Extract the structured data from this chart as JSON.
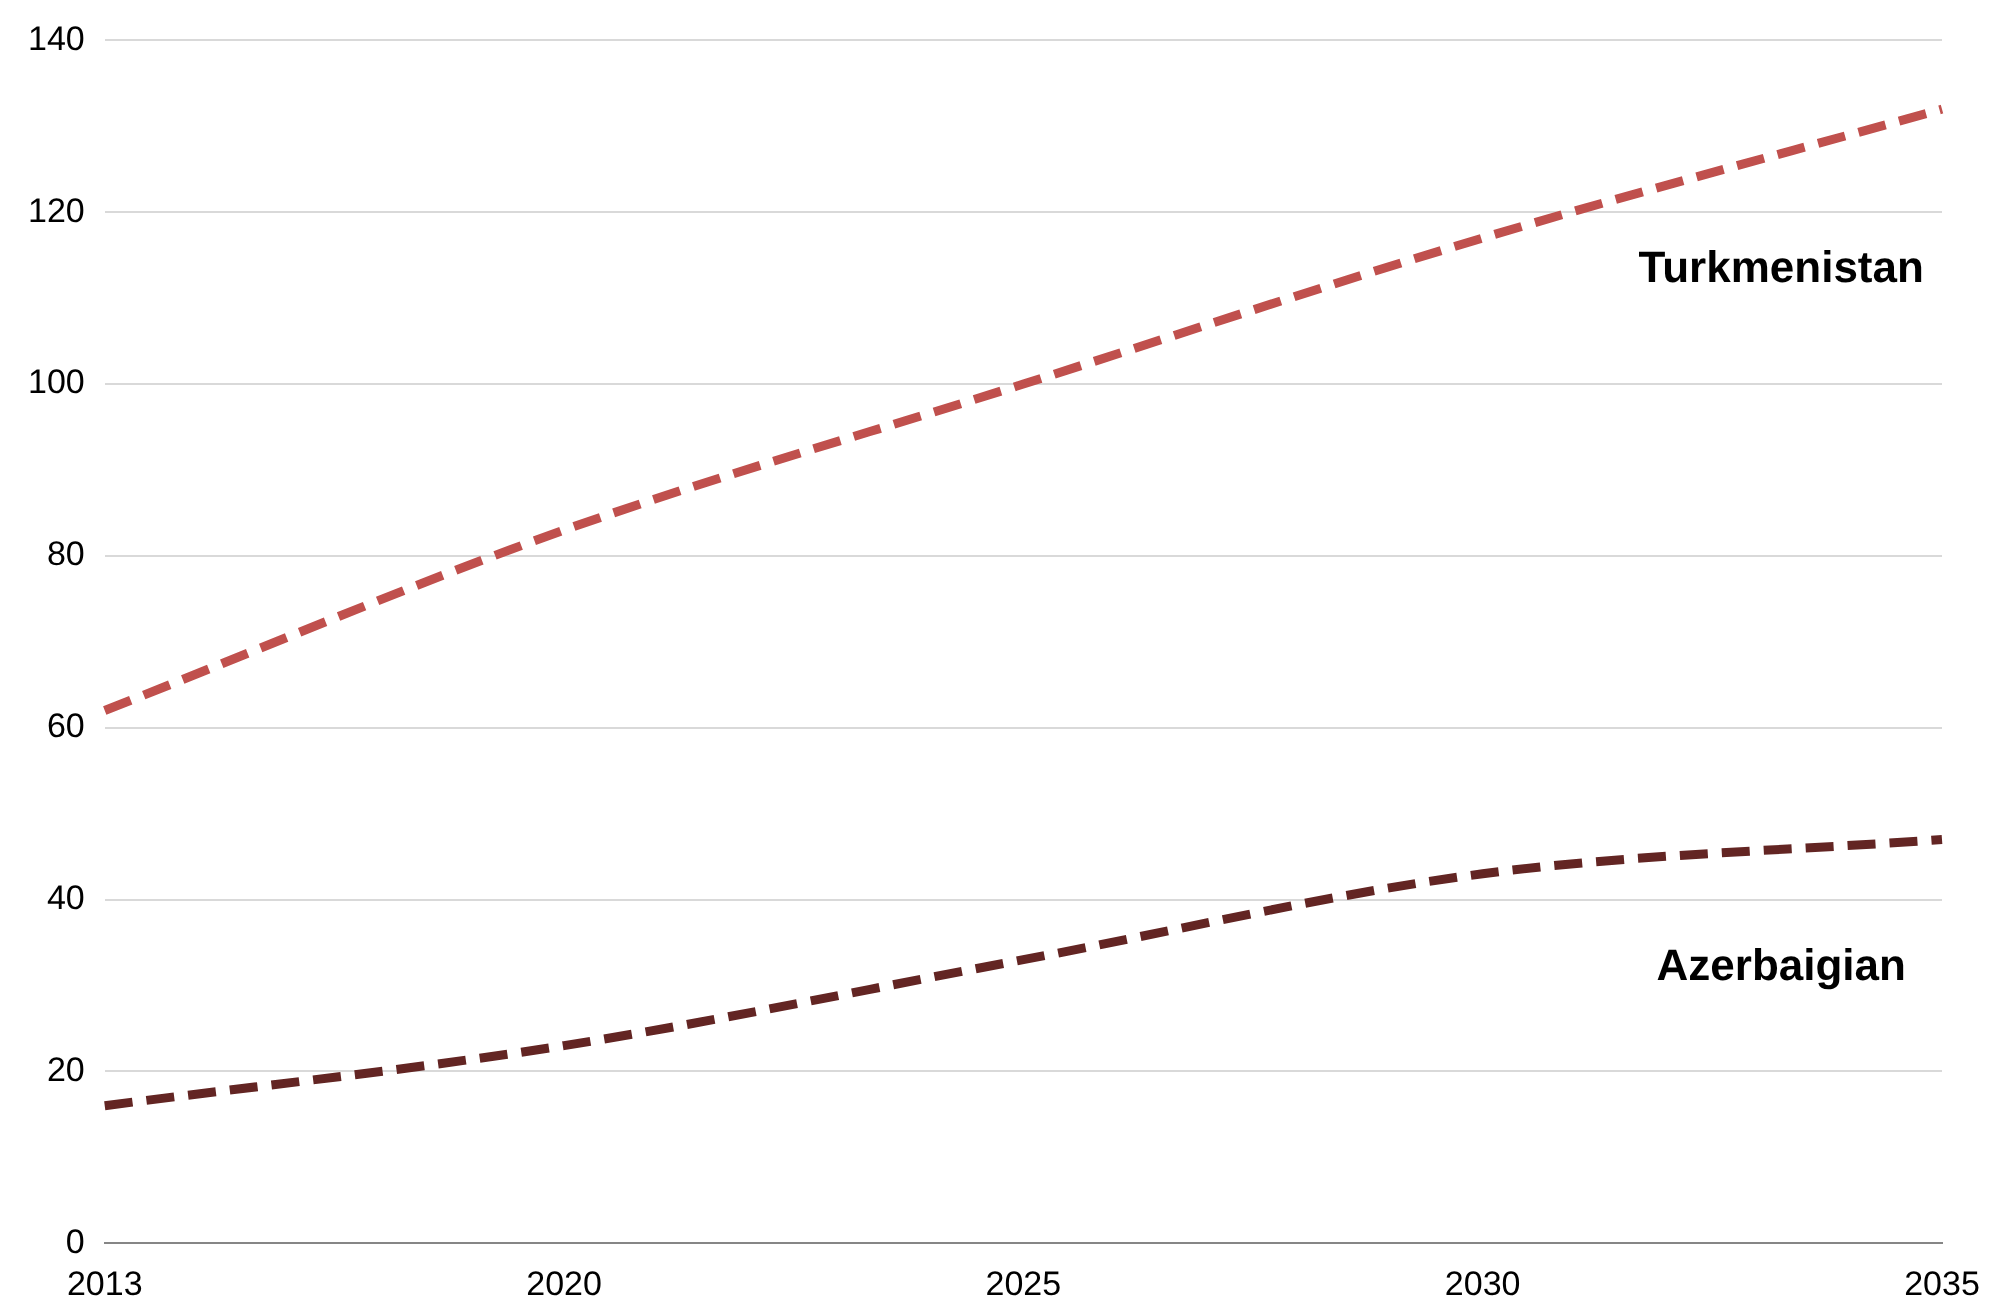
{
  "chart_data": {
    "type": "line",
    "categories": [
      "2013",
      "2020",
      "2025",
      "2030",
      "2035"
    ],
    "series": [
      {
        "name": "Turkmenistan",
        "color": "#c0504d",
        "values": [
          62,
          83,
          100,
          117,
          132
        ]
      },
      {
        "name": "Azerbaigian",
        "color": "#632523",
        "values": [
          16,
          23,
          33,
          43,
          47
        ]
      }
    ],
    "ylim": [
      0,
      140
    ],
    "yticks": [
      0,
      20,
      40,
      60,
      80,
      100,
      120,
      140
    ],
    "grid": "y",
    "legend": false,
    "marker": "none",
    "line_style": "dashed"
  }
}
